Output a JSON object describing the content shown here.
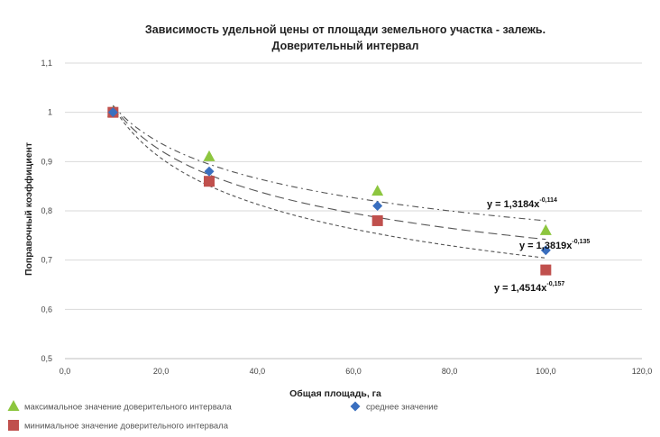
{
  "chart_data": {
    "type": "scatter",
    "title_line1": "Зависимость удельной цены от площади земельного участка - залежь.",
    "title_line2": "Доверительный интервал",
    "xlabel": "Общая площадь, га",
    "ylabel": "Поправочный коэффициент",
    "xlim": [
      0,
      120
    ],
    "ylim": [
      0.5,
      1.1
    ],
    "x_ticks": [
      0,
      20,
      40,
      60,
      80,
      100,
      120
    ],
    "x_tick_labels": [
      "0,0",
      "20,0",
      "40,0",
      "60,0",
      "80,0",
      "100,0",
      "120,0"
    ],
    "y_ticks": [
      0.5,
      0.6,
      0.7,
      0.8,
      0.9,
      1.0,
      1.1
    ],
    "y_tick_labels": [
      "0,5",
      "0,6",
      "0,7",
      "0,8",
      "0,9",
      "1",
      "1,1"
    ],
    "grid": "horizontal",
    "legend_position": "bottom",
    "series": [
      {
        "key": "max",
        "name": "максимальное значение доверительного интервала",
        "marker": "triangle",
        "color": "#8dc63f",
        "points": [
          [
            10,
            1.0
          ],
          [
            30,
            0.91
          ],
          [
            65,
            0.84
          ],
          [
            100,
            0.76
          ]
        ],
        "trend": {
          "a": 1.3184,
          "b": 0.114,
          "equation": "y = 1,3184x",
          "exponent": "-0,114"
        }
      },
      {
        "key": "mean",
        "name": "среднее значение",
        "marker": "diamond",
        "color": "#3a6fbf",
        "points": [
          [
            10,
            1.0
          ],
          [
            30,
            0.88
          ],
          [
            65,
            0.81
          ],
          [
            100,
            0.72
          ]
        ],
        "trend": {
          "a": 1.3819,
          "b": 0.135,
          "equation": "y = 1,3819x",
          "exponent": "-0,135"
        }
      },
      {
        "key": "min",
        "name": "минимальное значение доверительного интервала",
        "marker": "square",
        "color": "#c0504d",
        "points": [
          [
            10,
            1.0
          ],
          [
            30,
            0.86
          ],
          [
            65,
            0.78
          ],
          [
            100,
            0.68
          ]
        ],
        "trend": {
          "a": 1.4514,
          "b": 0.157,
          "equation": "y = 1,4514x",
          "exponent": "-0,157"
        }
      }
    ]
  }
}
